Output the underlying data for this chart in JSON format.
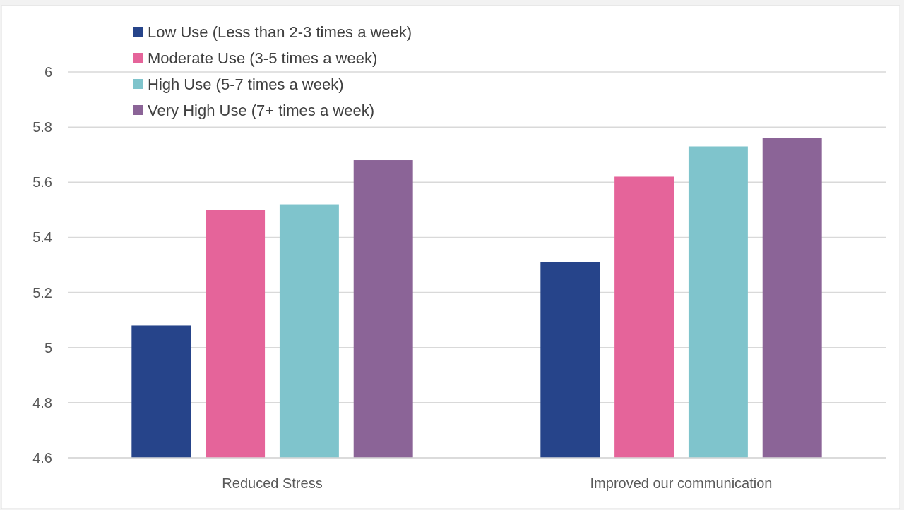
{
  "chart_data": {
    "type": "bar",
    "categories": [
      "Reduced Stress",
      "Improved our communication"
    ],
    "series": [
      {
        "name": "Low Use (Less than 2-3 times a week)",
        "color": "#26448a",
        "values": [
          5.08,
          5.31
        ]
      },
      {
        "name": "Moderate Use (3-5 times a week)",
        "color": "#e5649a",
        "values": [
          5.5,
          5.62
        ]
      },
      {
        "name": "High Use (5-7 times a week)",
        "color": "#7fc4cc",
        "values": [
          5.52,
          5.73
        ]
      },
      {
        "name": "Very High Use (7+ times a week)",
        "color": "#8b6497",
        "values": [
          5.68,
          5.76
        ]
      }
    ],
    "ylim": [
      4.6,
      6
    ],
    "yticks": [
      4.6,
      4.8,
      5,
      5.2,
      5.4,
      5.6,
      5.8,
      6
    ],
    "grid": "y",
    "legend": "top left"
  }
}
